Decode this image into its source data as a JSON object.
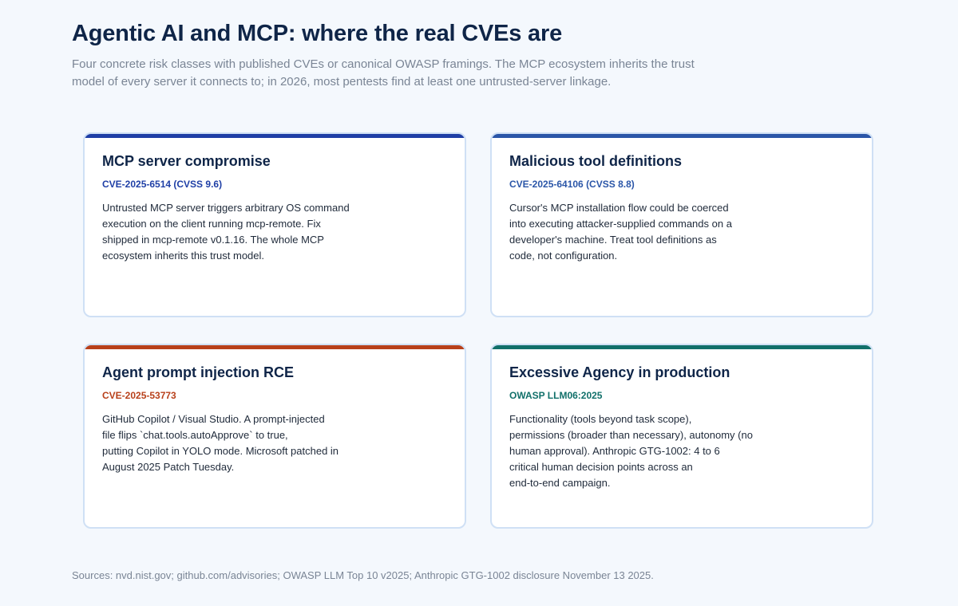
{
  "header": {
    "title": "Agentic AI and MCP: where the real CVEs are",
    "subtitle": "Four concrete risk classes with published CVEs or canonical OWASP framings. The MCP ecosystem inherits the trust model of every server it connects to; in 2026, most pentests find at least one untrusted-server linkage."
  },
  "cards": [
    {
      "title": "MCP server compromise",
      "tag": "CVE-2025-6514 (CVSS 9.6)",
      "accent": "#1f3fa6",
      "lines": [
        "Untrusted MCP server triggers arbitrary OS command",
        "execution on the client running mcp-remote. Fix",
        "shipped in mcp-remote v0.1.16. The whole MCP",
        "ecosystem inherits this trust model."
      ]
    },
    {
      "title": "Malicious tool definitions",
      "tag": "CVE-2025-64106 (CVSS 8.8)",
      "accent": "#2b56a8",
      "lines": [
        "Cursor's MCP installation flow could be coerced",
        "into executing attacker-supplied commands on a",
        "developer's machine. Treat tool definitions as",
        "code, not configuration."
      ]
    },
    {
      "title": "Agent prompt injection RCE",
      "tag": "CVE-2025-53773",
      "accent": "#b8401a",
      "lines": [
        "GitHub Copilot / Visual Studio. A prompt-injected",
        "file flips `chat.tools.autoApprove` to true,",
        "putting Copilot in YOLO mode. Microsoft patched in",
        "August 2025 Patch Tuesday."
      ]
    },
    {
      "title": "Excessive Agency in production",
      "tag": "OWASP LLM06:2025",
      "accent": "#11706a",
      "lines": [
        "Functionality (tools beyond task scope),",
        "permissions (broader than necessary), autonomy (no",
        "human approval). Anthropic GTG-1002: 4 to 6",
        "critical human decision points across an",
        "end-to-end campaign."
      ]
    }
  ],
  "footer": {
    "sources": "Sources: nvd.nist.gov; github.com/advisories; OWASP LLM Top 10 v2025; Anthropic GTG-1002 disclosure November 13 2025."
  }
}
